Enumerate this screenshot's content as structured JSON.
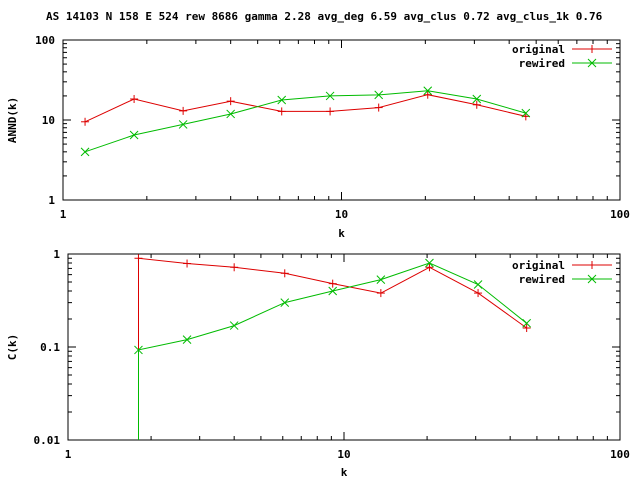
{
  "header": {
    "title": "AS 14103 N 158 E 524 rew 8686 gamma 2.28 avg_deg 6.59 avg_clus 0.72 avg_clus_1k 0.76"
  },
  "colors": {
    "original": "#dd0000",
    "rewired": "#00bb00",
    "axes": "#000000",
    "background": "#ffffff"
  },
  "chart_data": [
    {
      "type": "line",
      "xlabel": "k",
      "ylabel": "ANND(k)",
      "xscale": "log",
      "yscale": "log",
      "xlim": [
        1,
        100
      ],
      "ylim": [
        1,
        100
      ],
      "xticks": [
        {
          "value": 1,
          "label": "1"
        },
        {
          "value": 10,
          "label": "10"
        },
        {
          "value": 100,
          "label": "100"
        }
      ],
      "yticks": [
        {
          "value": 1,
          "label": "1"
        },
        {
          "value": 10,
          "label": "10"
        },
        {
          "value": 100,
          "label": "100"
        }
      ],
      "legend": "top-right",
      "grid": false,
      "series": [
        {
          "name": "original",
          "marker": "plus",
          "x": [
            1.2,
            1.8,
            2.7,
            4.0,
            6.1,
            9.1,
            13.6,
            20.4,
            30.6,
            45.9
          ],
          "y": [
            9.5,
            18.3,
            13.0,
            17.2,
            12.8,
            12.8,
            14.3,
            20.7,
            15.5,
            11.1
          ]
        },
        {
          "name": "rewired",
          "marker": "cross",
          "x": [
            1.2,
            1.8,
            2.7,
            4.0,
            6.1,
            9.1,
            13.6,
            20.4,
            30.6,
            45.9
          ],
          "y": [
            4.0,
            6.5,
            8.8,
            11.9,
            17.8,
            20.0,
            20.6,
            23.2,
            18.3,
            12.2
          ]
        }
      ]
    },
    {
      "type": "line",
      "xlabel": "k",
      "ylabel": "C(k)",
      "xscale": "log",
      "yscale": "log",
      "xlim": [
        1,
        100
      ],
      "ylim": [
        0.01,
        1
      ],
      "xticks": [
        {
          "value": 1,
          "label": "1"
        },
        {
          "value": 10,
          "label": "10"
        },
        {
          "value": 100,
          "label": "100"
        }
      ],
      "yticks": [
        {
          "value": 0.01,
          "label": "0.01"
        },
        {
          "value": 0.1,
          "label": "0.1"
        },
        {
          "value": 1,
          "label": "1"
        }
      ],
      "legend": "top-right",
      "grid": false,
      "series": [
        {
          "name": "original",
          "marker": "plus",
          "x": [
            1.8,
            1.8,
            2.7,
            4.0,
            6.1,
            9.1,
            13.6,
            20.4,
            30.6,
            45.9
          ],
          "y": [
            0.01,
            0.9,
            0.79,
            0.72,
            0.62,
            0.48,
            0.38,
            0.72,
            0.38,
            0.16
          ],
          "markers_from": 1
        },
        {
          "name": "rewired",
          "marker": "cross",
          "x": [
            1.8,
            1.8,
            2.7,
            4.0,
            6.1,
            9.1,
            13.6,
            20.4,
            30.6,
            45.9
          ],
          "y": [
            0.01,
            0.093,
            0.12,
            0.17,
            0.3,
            0.4,
            0.53,
            0.8,
            0.47,
            0.18
          ],
          "markers_from": 1
        }
      ]
    }
  ]
}
